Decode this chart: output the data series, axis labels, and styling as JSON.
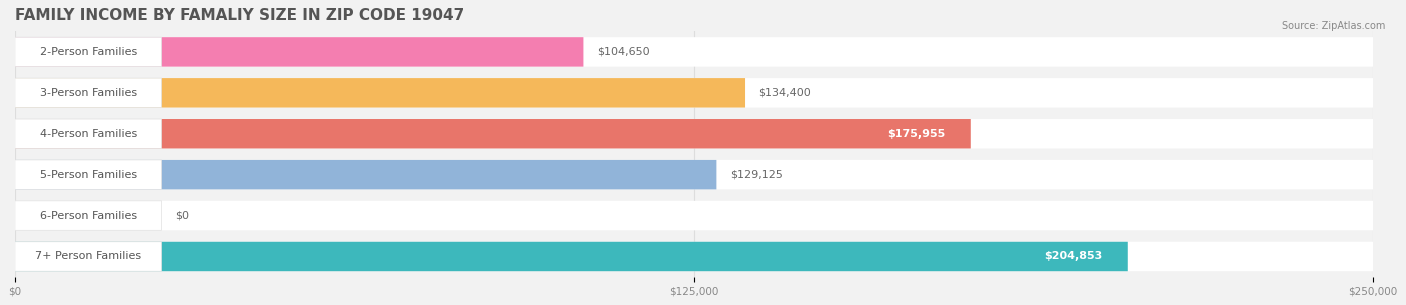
{
  "title": "FAMILY INCOME BY FAMALIY SIZE IN ZIP CODE 19047",
  "source": "Source: ZipAtlas.com",
  "categories": [
    "2-Person Families",
    "3-Person Families",
    "4-Person Families",
    "5-Person Families",
    "6-Person Families",
    "7+ Person Families"
  ],
  "values": [
    104650,
    134400,
    175955,
    129125,
    0,
    204853
  ],
  "bar_colors": [
    "#f47eb0",
    "#f5b85a",
    "#e8756a",
    "#91b4d9",
    "#c9a8d8",
    "#3db8bc"
  ],
  "value_labels": [
    "$104,650",
    "$134,400",
    "$175,955",
    "$129,125",
    "$0",
    "$204,853"
  ],
  "value_inside": [
    false,
    false,
    true,
    false,
    false,
    true
  ],
  "xlim": [
    0,
    250000
  ],
  "xticks": [
    0,
    125000,
    250000
  ],
  "xtick_labels": [
    "$0",
    "$125,000",
    "$250,000"
  ],
  "background_color": "#f2f2f2",
  "title_fontsize": 11,
  "label_fontsize": 8,
  "value_fontsize": 8
}
